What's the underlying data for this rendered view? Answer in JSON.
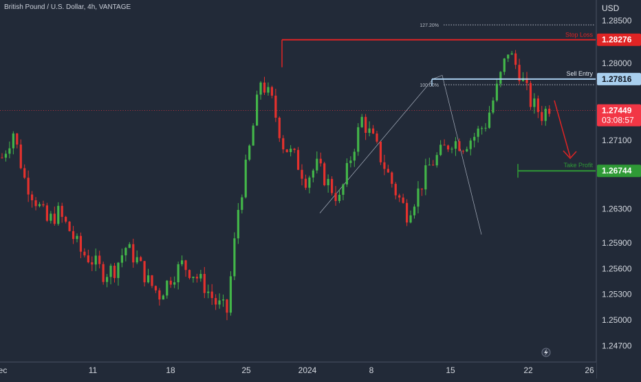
{
  "header": {
    "symbol_title": "British Pound / U.S. Dollar, 4h, VANTAGE",
    "currency_label": "USD"
  },
  "colors": {
    "background": "#222a38",
    "bull": "#43b649",
    "bear": "#e5312d",
    "stop_loss": "#e02424",
    "sell_entry": "#a9cfee",
    "take_profit": "#2f9a36",
    "current_price": "#f23645"
  },
  "chart_data": {
    "type": "candlestick",
    "ylim": [
      1.2455,
      1.287
    ],
    "y_ticks": [
      "1.28500",
      "1.28000",
      "1.27100",
      "1.26300",
      "1.25900",
      "1.25600",
      "1.25300",
      "1.25000",
      "1.24700"
    ],
    "x_ticks": [
      "ec",
      "11",
      "18",
      "25",
      "2024",
      "8",
      "15",
      "22",
      "26"
    ],
    "grid": false,
    "levels": {
      "stop_loss": {
        "label": "Stop Loss",
        "price": "1.28276",
        "value": 1.28276
      },
      "sell_entry": {
        "label": "Sell Entry",
        "price": "1.27816",
        "value": 1.27816
      },
      "take_profit": {
        "label": "Take Profit",
        "price": "1.26744",
        "value": 1.26744
      }
    },
    "current_price": {
      "price": "1.27449",
      "countdown": "03:08:57",
      "value": 1.27449
    },
    "fib_levels": [
      {
        "label": "127.20%",
        "value": 1.2845
      },
      {
        "label": "100.00%",
        "value": 1.2775
      }
    ],
    "price_path": [
      1.269,
      1.272,
      1.2665,
      1.264,
      1.2615,
      1.2625,
      1.2605,
      1.258,
      1.257,
      1.2555,
      1.256,
      1.2585,
      1.257,
      1.2545,
      1.253,
      1.255,
      1.2565,
      1.2555,
      1.254,
      1.252,
      1.251,
      1.263,
      1.27,
      1.278,
      1.2755,
      1.2705,
      1.269,
      1.2665,
      1.268,
      1.266,
      1.264,
      1.269,
      1.2735,
      1.271,
      1.268,
      1.265,
      1.2625,
      1.265,
      1.268,
      1.2695,
      1.271,
      1.2705,
      1.2715,
      1.273,
      1.277,
      1.2815,
      1.279,
      1.2755,
      1.274,
      1.2755,
      1.2735,
      1.2715,
      1.273,
      1.2695,
      1.263,
      1.262,
      1.2635,
      1.2655,
      1.267,
      1.269,
      1.27,
      1.2685,
      1.27,
      1.272,
      1.2735,
      1.2755,
      1.274,
      1.2715,
      1.2705,
      1.273,
      1.2745,
      1.2765,
      1.278,
      1.276,
      1.2745,
      1.273,
      1.272,
      1.2695,
      1.265,
      1.262,
      1.2635,
      1.2665,
      1.269,
      1.2685,
      1.2665,
      1.2695,
      1.27,
      1.271,
      1.272,
      1.2745
    ]
  }
}
